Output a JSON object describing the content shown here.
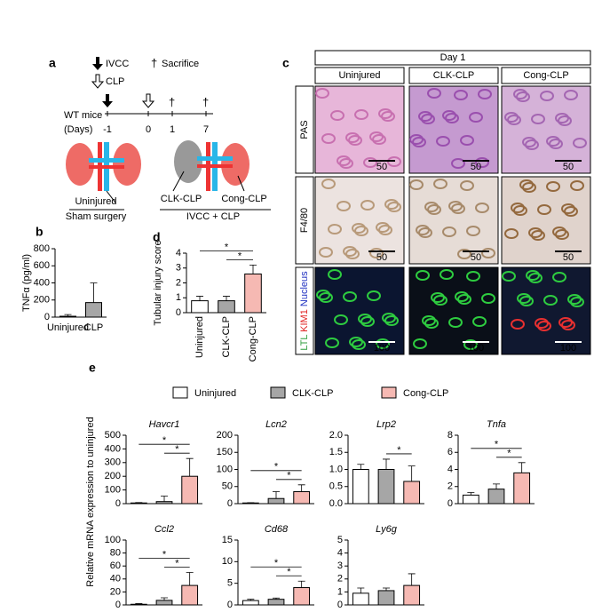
{
  "panel_a": {
    "label": "a",
    "legend": [
      "IVCC",
      "CLP",
      "Sacrifice"
    ],
    "timeline_label": "WT mice",
    "days_label": "(Days)",
    "days": [
      "-1",
      "0",
      "1",
      "7"
    ],
    "kidney1_label": "Uninjured",
    "group1": "Sham surgery",
    "kidney2_labels": [
      "CLK-CLP",
      "Cong-CLP"
    ],
    "group2": "IVCC + CLP"
  },
  "panel_b": {
    "label": "b"
  },
  "panel_d": {
    "label": "d"
  },
  "panel_c": {
    "label": "c",
    "header": "Day 1",
    "columns": [
      "Uninjured",
      "CLK-CLP",
      "Cong-CLP"
    ],
    "rows": [
      {
        "label": "PAS",
        "scale": "50"
      },
      {
        "label": "F4/80",
        "scale": "50"
      },
      {
        "label_parts": [
          "LTL",
          "KIM1",
          "Nucleus"
        ],
        "scale": "100"
      }
    ]
  },
  "panel_e": {
    "label": "e",
    "ylabel": "Relative mRNA expression to uninjured",
    "legend": [
      {
        "name": "Uninjured",
        "color": "#ffffff"
      },
      {
        "name": "CLK-CLP",
        "color": "#a6a6a6"
      },
      {
        "name": "Cong-CLP",
        "color": "#f6b9b3"
      }
    ]
  },
  "chart_data": [
    {
      "type": "bar",
      "ylabel": "TNFα (pg/ml)",
      "categories": [
        "Uninjured",
        "CLP"
      ],
      "colors": [
        "#ffffff",
        "#a6a6a6"
      ],
      "values": [
        10,
        170
      ],
      "errors": [
        20,
        230
      ],
      "ylim": [
        0,
        800
      ],
      "yticks": [
        0,
        200,
        400,
        600,
        800
      ]
    },
    {
      "type": "bar",
      "ylabel": "Tubular injury score",
      "categories": [
        "Uninjured",
        "CLK-CLP",
        "Cong-CLP"
      ],
      "colors": [
        "#ffffff",
        "#a6a6a6",
        "#f6b9b3"
      ],
      "values": [
        0.8,
        0.8,
        2.6
      ],
      "errors": [
        0.3,
        0.3,
        0.6
      ],
      "ylim": [
        0,
        4
      ],
      "yticks": [
        0,
        1,
        2,
        3,
        4
      ],
      "annotations": [
        "*",
        "*"
      ]
    },
    {
      "type": "bar",
      "title": "Havcr1",
      "values": [
        5,
        15,
        200
      ],
      "errors": [
        3,
        40,
        130
      ],
      "ylim": [
        0,
        500
      ],
      "yticks": [
        0,
        100,
        200,
        300,
        400,
        500
      ],
      "annotations": [
        "*",
        "*"
      ]
    },
    {
      "type": "bar",
      "title": "Lcn2",
      "values": [
        2,
        15,
        35
      ],
      "errors": [
        1,
        20,
        20
      ],
      "ylim": [
        0,
        200
      ],
      "yticks": [
        0,
        50,
        100,
        150,
        200
      ],
      "annotations": [
        "*",
        "*"
      ]
    },
    {
      "type": "bar",
      "title": "Lrp2",
      "values": [
        1.0,
        1.0,
        0.65
      ],
      "errors": [
        0.15,
        0.3,
        0.45
      ],
      "ylim": [
        0,
        2
      ],
      "yticks": [
        {
          "value": 0,
          "label": "0.0"
        },
        {
          "value": 0.5,
          "label": "0.5"
        },
        {
          "value": 1,
          "label": "1.0"
        },
        {
          "value": 1.5,
          "label": "1.5"
        },
        {
          "value": 2,
          "label": "2.0"
        }
      ],
      "annotations": [
        "*"
      ]
    },
    {
      "type": "bar",
      "title": "Tnfa",
      "values": [
        1,
        1.7,
        3.6
      ],
      "errors": [
        0.3,
        0.6,
        1.2
      ],
      "ylim": [
        0,
        8
      ],
      "yticks": [
        0,
        2,
        4,
        6,
        8
      ],
      "annotations": [
        "*",
        "*"
      ]
    },
    {
      "type": "bar",
      "title": "Ccl2",
      "values": [
        1,
        7,
        30
      ],
      "errors": [
        1,
        4,
        20
      ],
      "ylim": [
        0,
        100
      ],
      "yticks": [
        0,
        20,
        40,
        60,
        80,
        100
      ],
      "annotations": [
        "*",
        "*"
      ]
    },
    {
      "type": "bar",
      "title": "Cd68",
      "values": [
        1,
        1.3,
        4
      ],
      "errors": [
        0.3,
        0.3,
        1.5
      ],
      "ylim": [
        0,
        15
      ],
      "yticks": [
        0,
        5,
        10,
        15
      ],
      "annotations": [
        "*",
        "*"
      ]
    },
    {
      "type": "bar",
      "title": "Ly6g",
      "values": [
        0.9,
        1.1,
        1.5
      ],
      "errors": [
        0.4,
        0.2,
        0.9
      ],
      "ylim": [
        0,
        5
      ],
      "yticks": [
        0,
        1,
        2,
        3,
        4,
        5
      ]
    }
  ]
}
